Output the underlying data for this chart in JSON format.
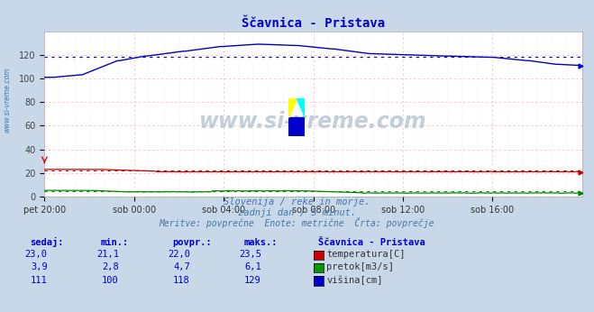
{
  "title": "Ščavnica - Pristava",
  "fig_bg_color": "#c8d8e8",
  "plot_bg_color": "#ffffff",
  "title_color": "#0000cc",
  "xtick_labels": [
    "pet 20:00",
    "sob 00:00",
    "sob 04:00",
    "sob 08:00",
    "sob 12:00",
    "sob 16:00"
  ],
  "xtick_positions": [
    0,
    48,
    96,
    144,
    192,
    240
  ],
  "yticks": [
    0,
    20,
    40,
    60,
    80,
    100,
    120
  ],
  "ylim": [
    0,
    140
  ],
  "xlim": [
    0,
    288
  ],
  "grid_h_color": "#ffaaaa",
  "grid_v_color": "#ffcccc",
  "grid_minor_color": "#dddddd",
  "color_red": "#cc0000",
  "color_green": "#008800",
  "color_blue": "#0000cc",
  "color_avg_red": "#cc0000",
  "color_avg_green": "#009900",
  "color_avg_blue": "#0000cc",
  "temp_avg": 22.0,
  "pretok_avg": 4.7,
  "visina_avg": 118,
  "subtitle1": "Slovenija / reke in morje.",
  "subtitle2": "zadnji dan / 5 minut.",
  "subtitle3": "Meritve: povprečne  Enote: metrične  Črta: povprečje",
  "subtitle_color": "#4477aa",
  "watermark": "www.si-vreme.com",
  "watermark_color": "#aabbcc",
  "side_label": "www.si-vreme.com",
  "side_label_color": "#4477aa",
  "table_header_color": "#0000cc",
  "table_value_color": "#0000cc",
  "table_label_color": "#333333",
  "legend_title": "Ščavnica - Pristava",
  "table_headers": [
    "sedaj:",
    "min.:",
    "povpr.:",
    "maks.:"
  ],
  "table_data": [
    [
      "23,0",
      "21,1",
      "22,0",
      "23,5"
    ],
    [
      "3,9",
      "2,8",
      "4,7",
      "6,1"
    ],
    [
      "111",
      "100",
      "118",
      "129"
    ]
  ],
  "legend_labels": [
    "temperatura[C]",
    "pretok[m3/s]",
    "višina[cm]"
  ],
  "legend_colors": [
    "#cc0000",
    "#009900",
    "#0000cc"
  ]
}
